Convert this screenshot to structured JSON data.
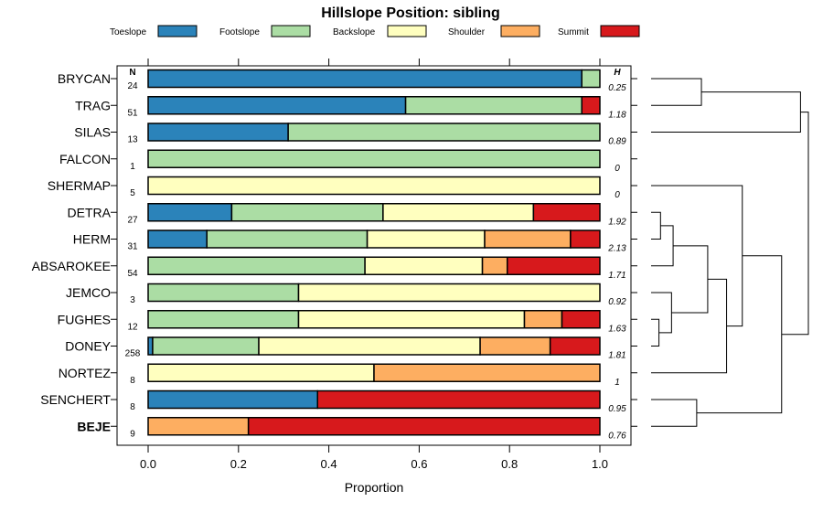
{
  "chart_data": {
    "type": "bar",
    "subtype": "horizontal-stacked-proportion",
    "title": "Hillslope Position: sibling",
    "xlabel": "Proportion",
    "ylabel": "",
    "xlim": [
      0,
      1
    ],
    "x_ticks": [
      "0.0",
      "0.2",
      "0.4",
      "0.6",
      "0.8",
      "1.0"
    ],
    "n_header": "N",
    "h_header": "H",
    "legend": [
      {
        "name": "Toeslope",
        "color": "#2b83ba"
      },
      {
        "name": "Footslope",
        "color": "#abdda4"
      },
      {
        "name": "Backslope",
        "color": "#ffffbf"
      },
      {
        "name": "Shoulder",
        "color": "#fdae61"
      },
      {
        "name": "Summit",
        "color": "#d7191c"
      }
    ],
    "categories": [
      "BRYCAN",
      "TRAG",
      "SILAS",
      "FALCON",
      "SHERMAP",
      "DETRA",
      "HERM",
      "ABSAROKEE",
      "JEMCO",
      "FUGHES",
      "DONEY",
      "NORTEZ",
      "SENCHERT",
      "BEJE"
    ],
    "highlight": "BEJE",
    "n": [
      "24",
      "51",
      "13",
      "1",
      "5",
      "27",
      "31",
      "54",
      "3",
      "12",
      "258",
      "8",
      "8",
      "9"
    ],
    "h": [
      "0.25",
      "1.18",
      "0.89",
      "0",
      "0",
      "1.92",
      "2.13",
      "1.71",
      "0.92",
      "1.63",
      "1.81",
      "1",
      "0.95",
      "0.76"
    ],
    "series": [
      {
        "name": "Toeslope",
        "values": [
          0.96,
          0.57,
          0.31,
          0,
          0,
          0.185,
          0.13,
          0,
          0,
          0,
          0.01,
          0,
          0.375,
          0
        ]
      },
      {
        "name": "Footslope",
        "values": [
          0.04,
          0.39,
          0.69,
          1,
          0,
          0.335,
          0.355,
          0.48,
          0.333,
          0.333,
          0.235,
          0,
          0,
          0
        ]
      },
      {
        "name": "Backslope",
        "values": [
          0,
          0,
          0,
          0,
          1,
          0.333,
          0.26,
          0.26,
          0.667,
          0.5,
          0.49,
          0.5,
          0,
          0
        ]
      },
      {
        "name": "Shoulder",
        "values": [
          0,
          0,
          0,
          0,
          0,
          0,
          0.19,
          0.055,
          0,
          0.083,
          0.155,
          0.5,
          0,
          0.222
        ]
      },
      {
        "name": "Summit",
        "values": [
          0,
          0.04,
          0,
          0,
          0,
          0.147,
          0.065,
          0.205,
          0,
          0.084,
          0.11,
          0,
          0.625,
          0.778
        ]
      }
    ],
    "dendrogram": {
      "groups": [
        {
          "leaves": [
            0,
            1,
            2
          ],
          "merge_height": 0.85
        },
        {
          "leaves": [
            3,
            4,
            5,
            6,
            7,
            8,
            9,
            10,
            11,
            12,
            13
          ],
          "merge_height": 0.75
        }
      ],
      "merges": [
        {
          "a": 0,
          "b": 1,
          "h": 0.32
        },
        {
          "a": "m0",
          "b": 2,
          "h": 0.95
        },
        {
          "a": 5,
          "b": 6,
          "h": 0.06
        },
        {
          "a": 9,
          "b": 10,
          "h": 0.05
        },
        {
          "a": "m3",
          "b": 8,
          "h": 0.13
        },
        {
          "a": "m2",
          "b": 7,
          "h": 0.14
        },
        {
          "a": "m5",
          "b": "m4",
          "h": 0.36
        },
        {
          "a": "m6",
          "b": 11,
          "h": 0.48
        },
        {
          "a": 12,
          "b": 13,
          "h": 0.29
        },
        {
          "a": "m7",
          "b": 4,
          "h": 0.58
        },
        {
          "a": "m9",
          "b": "m8",
          "h": 0.83
        },
        {
          "a": "m1",
          "b": "m10",
          "h": 1.0
        }
      ]
    }
  }
}
